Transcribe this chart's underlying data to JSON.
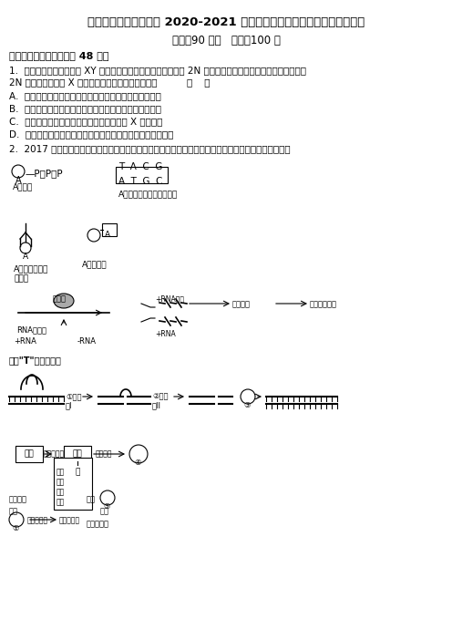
{
  "title": "安徽省六安市舒城中学 2020-2021 学年上学期高二年级期末考试生物试卷",
  "subtitle": "时间：90 分钟   分值：100 分",
  "section1": "一、单选题（每题分，共 48 分）",
  "q1_text": "1.  观察到一个性别决定为 XY 型的二倍体动物（正常体细胞内有 2N 条染色体）细胞正处在某分裂时期，含有",
  "q1_text2": "2N 条染色体，呈现 X 种不同形态，下列叙述正确的是          （    ）",
  "q1_a": "A.  若此细胞中有同源染色体，则此细胞只能进行有丝分裂",
  "q1_b": "B.  若此细胞中有染色单体，则此细胞不能是次级精母细胞",
  "q1_c": "C.  若此细胞处在分裂中期，则此细胞中含有 X 个四分体",
  "q1_d": "D.  若此细胞处在分裂后期，则其产生两个子细胞的基因型不同",
  "q2_text": "2.  2017 年诺贝尔获奖者在研究果蝇的羽化（从蛹变为蝇）昼夜节律过程中，克隆出野生型昼夜节律基因",
  "background": "#ffffff",
  "text_color": "#000000",
  "font_size_title": 9,
  "font_size_body": 7.5
}
